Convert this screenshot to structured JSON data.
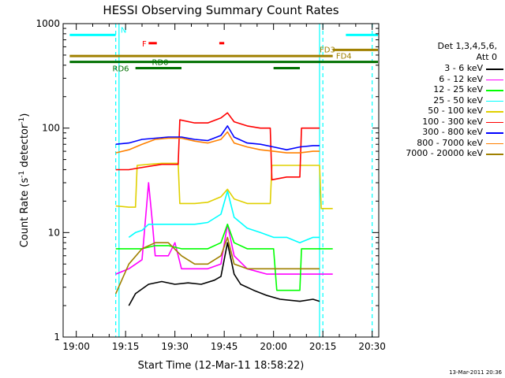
{
  "chart_data": {
    "type": "line",
    "title": "HESSI Observing Summary Count Rates",
    "xlabel": "Start Time (12-Mar-11 18:58:22)",
    "ylabel_main": "Count Rate (s",
    "ylabel_sup1": "-1",
    "ylabel_mid": " detector",
    "ylabel_sup2": "-1",
    "ylabel_end": ")",
    "y_scale": "log",
    "ylim": [
      1,
      1000
    ],
    "xlim_minutes": [
      -4,
      92
    ],
    "x_ticks": [
      {
        "label": "19:00",
        "minute": 0
      },
      {
        "label": "19:15",
        "minute": 15
      },
      {
        "label": "19:30",
        "minute": 30
      },
      {
        "label": "19:45",
        "minute": 45
      },
      {
        "label": "20:00",
        "minute": 60
      },
      {
        "label": "20:15",
        "minute": 75
      },
      {
        "label": "20:30",
        "minute": 90
      }
    ],
    "y_ticks": [
      {
        "label": "1",
        "value": 1
      },
      {
        "label": "10",
        "value": 10
      },
      {
        "label": "100",
        "value": 100
      },
      {
        "label": "1000",
        "value": 1000
      }
    ],
    "legend_header": [
      "Det 1,3,4,5,6,",
      "Att 0"
    ],
    "series": [
      {
        "name": "3 - 6 keV",
        "color": "#000000",
        "points": [
          [
            16,
            2
          ],
          [
            18,
            2.6
          ],
          [
            22,
            3.2
          ],
          [
            26,
            3.4
          ],
          [
            30,
            3.2
          ],
          [
            34,
            3.3
          ],
          [
            38,
            3.2
          ],
          [
            42,
            3.5
          ],
          [
            44,
            3.8
          ],
          [
            46,
            8
          ],
          [
            48,
            4
          ],
          [
            50,
            3.2
          ],
          [
            54,
            2.8
          ],
          [
            58,
            2.5
          ],
          [
            62,
            2.3
          ],
          [
            68,
            2.2
          ],
          [
            72,
            2.3
          ],
          [
            74,
            2.2
          ]
        ]
      },
      {
        "name": "6 - 12 keV",
        "color": "#ff00ff",
        "points": [
          [
            12,
            4
          ],
          [
            16,
            4.5
          ],
          [
            20,
            5.5
          ],
          [
            22,
            30
          ],
          [
            23,
            14
          ],
          [
            24,
            6
          ],
          [
            28,
            6
          ],
          [
            30,
            8
          ],
          [
            32,
            4.5
          ],
          [
            36,
            4.5
          ],
          [
            40,
            4.5
          ],
          [
            44,
            5
          ],
          [
            46,
            12
          ],
          [
            48,
            6
          ],
          [
            52,
            4.5
          ],
          [
            58,
            4
          ],
          [
            62,
            4
          ],
          [
            68,
            4
          ],
          [
            74,
            4
          ],
          [
            78,
            4
          ]
        ]
      },
      {
        "name": "12 - 25 keV",
        "color": "#00ff00",
        "points": [
          [
            12,
            7
          ],
          [
            16,
            7
          ],
          [
            20,
            7
          ],
          [
            24,
            7.5
          ],
          [
            28,
            7.5
          ],
          [
            32,
            7
          ],
          [
            36,
            7
          ],
          [
            40,
            7
          ],
          [
            44,
            8
          ],
          [
            46,
            12
          ],
          [
            48,
            8
          ],
          [
            52,
            7
          ],
          [
            58,
            7
          ],
          [
            60,
            7
          ],
          [
            61,
            2.8
          ],
          [
            66,
            2.8
          ],
          [
            68,
            2.8
          ],
          [
            68.5,
            7
          ],
          [
            74,
            7
          ],
          [
            78,
            7
          ]
        ]
      },
      {
        "name": "25 - 50 keV",
        "color": "#00ffff",
        "points": [
          [
            16,
            9
          ],
          [
            18,
            10
          ],
          [
            20,
            10.5
          ],
          [
            22,
            12
          ],
          [
            25,
            12
          ],
          [
            28,
            12
          ],
          [
            32,
            12
          ],
          [
            36,
            12
          ],
          [
            40,
            12.5
          ],
          [
            44,
            15
          ],
          [
            46,
            25
          ],
          [
            48,
            14
          ],
          [
            52,
            11
          ],
          [
            56,
            10
          ],
          [
            60,
            9
          ],
          [
            64,
            9
          ],
          [
            68,
            8
          ],
          [
            72,
            9
          ],
          [
            74,
            9
          ]
        ]
      },
      {
        "name": "50 - 100 keV",
        "color": "#e0d000",
        "points": [
          [
            12,
            18
          ],
          [
            16,
            17.5
          ],
          [
            18,
            17.5
          ],
          [
            18.5,
            44
          ],
          [
            22,
            45
          ],
          [
            26,
            46
          ],
          [
            30,
            46
          ],
          [
            31,
            46
          ],
          [
            31.5,
            19
          ],
          [
            36,
            19
          ],
          [
            40,
            19.5
          ],
          [
            44,
            22
          ],
          [
            46,
            26
          ],
          [
            48,
            21
          ],
          [
            52,
            19
          ],
          [
            58,
            19
          ],
          [
            59,
            19
          ],
          [
            59.5,
            44
          ],
          [
            64,
            44
          ],
          [
            68,
            44
          ],
          [
            72,
            44
          ],
          [
            74,
            44
          ],
          [
            74.5,
            17
          ],
          [
            78,
            17
          ]
        ]
      },
      {
        "name": "100 - 300 keV",
        "color": "#ff0000",
        "points": [
          [
            12,
            40
          ],
          [
            16,
            40
          ],
          [
            18,
            41
          ],
          [
            22,
            43
          ],
          [
            26,
            45
          ],
          [
            30,
            45
          ],
          [
            31,
            45
          ],
          [
            31.5,
            120
          ],
          [
            36,
            112
          ],
          [
            40,
            112
          ],
          [
            44,
            125
          ],
          [
            46,
            140
          ],
          [
            48,
            115
          ],
          [
            52,
            105
          ],
          [
            56,
            100
          ],
          [
            59,
            100
          ],
          [
            59.5,
            32
          ],
          [
            64,
            34
          ],
          [
            68,
            34
          ],
          [
            68.5,
            100
          ],
          [
            72,
            100
          ],
          [
            74,
            100
          ]
        ]
      },
      {
        "name": "300 - 800 keV",
        "color": "#0000ff",
        "points": [
          [
            12,
            70
          ],
          [
            16,
            72
          ],
          [
            20,
            78
          ],
          [
            24,
            80
          ],
          [
            28,
            82
          ],
          [
            32,
            82
          ],
          [
            36,
            78
          ],
          [
            40,
            76
          ],
          [
            44,
            85
          ],
          [
            46,
            105
          ],
          [
            48,
            82
          ],
          [
            52,
            72
          ],
          [
            56,
            70
          ],
          [
            60,
            66
          ],
          [
            64,
            62
          ],
          [
            68,
            66
          ],
          [
            72,
            68
          ],
          [
            74,
            68
          ]
        ]
      },
      {
        "name": "800 - 7000 keV",
        "color": "#ff8000",
        "points": [
          [
            12,
            58
          ],
          [
            16,
            62
          ],
          [
            20,
            70
          ],
          [
            24,
            78
          ],
          [
            28,
            80
          ],
          [
            32,
            80
          ],
          [
            36,
            75
          ],
          [
            40,
            72
          ],
          [
            44,
            78
          ],
          [
            46,
            92
          ],
          [
            48,
            72
          ],
          [
            52,
            66
          ],
          [
            56,
            62
          ],
          [
            60,
            60
          ],
          [
            64,
            58
          ],
          [
            68,
            58
          ],
          [
            72,
            60
          ],
          [
            74,
            60
          ]
        ]
      },
      {
        "name": "7000 - 20000 keV",
        "color": "#a08000",
        "points": [
          [
            12,
            2.6
          ],
          [
            16,
            5
          ],
          [
            20,
            7
          ],
          [
            24,
            8
          ],
          [
            28,
            8
          ],
          [
            32,
            6
          ],
          [
            36,
            5
          ],
          [
            40,
            5
          ],
          [
            44,
            6
          ],
          [
            46,
            9
          ],
          [
            48,
            5
          ],
          [
            52,
            4.5
          ],
          [
            56,
            4.5
          ],
          [
            60,
            4.5
          ],
          [
            64,
            4.5
          ],
          [
            68,
            4.5
          ],
          [
            72,
            4.5
          ],
          [
            74,
            4.5
          ]
        ]
      }
    ],
    "vertical_lines": [
      {
        "minute": 12,
        "style": "dashed",
        "color": "#00ffff"
      },
      {
        "minute": 13,
        "style": "solid",
        "color": "#00ffff"
      },
      {
        "minute": 74,
        "style": "solid",
        "color": "#00ffff"
      },
      {
        "minute": 75,
        "style": "dashed",
        "color": "#00ffff"
      },
      {
        "minute": 90,
        "style": "dashed",
        "color": "#00ffff"
      }
    ],
    "flag_bars": [
      {
        "label": "N",
        "color": "#00ffff",
        "segments": [
          [
            -2,
            12
          ],
          [
            82,
            92
          ]
        ],
        "y_value": 780,
        "label_minute": 13.5,
        "label_value": 880
      },
      {
        "label": "F",
        "color": "#ff0000",
        "segments": [
          [
            22,
            24.5
          ],
          [
            43.5,
            45
          ]
        ],
        "y_value": 650,
        "label_minute": 20,
        "label_value": 650
      },
      {
        "label": "FD3",
        "color": "#a08000",
        "segments": [
          [
            78,
            92
          ]
        ],
        "y_value": 560,
        "label_minute": 74,
        "label_value": 570
      },
      {
        "label": "FD4",
        "color": "#a08000",
        "segments": [
          [
            -2,
            78
          ]
        ],
        "y_value": 490,
        "label_minute": 79,
        "label_value": 495
      },
      {
        "label": "RD0",
        "color": "#007000",
        "segments": [
          [
            -2,
            32
          ],
          [
            32,
            92
          ]
        ],
        "y_value": 430,
        "label_minute": 23,
        "label_value": 432
      },
      {
        "label": "RD6",
        "color": "#007000",
        "segments": [
          [
            18,
            32
          ],
          [
            60,
            68
          ]
        ],
        "y_value": 375,
        "label_minute": 11,
        "label_value": 375
      }
    ],
    "timestamp": "13-Mar-2011 20:36"
  }
}
